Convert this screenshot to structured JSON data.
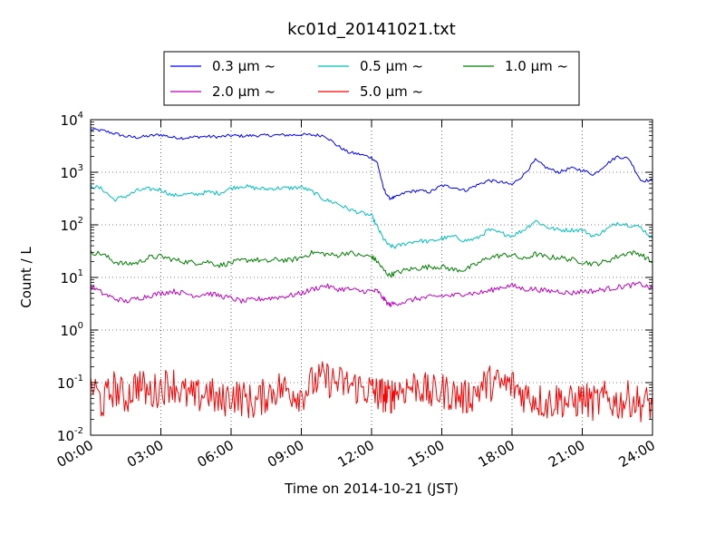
{
  "chart_data": {
    "type": "line",
    "title": "kc01d_20141021.txt",
    "xlabel": "Time on 2014-10-21 (JST)",
    "ylabel": "Count / L",
    "yscale": "log",
    "ylim": [
      0.01,
      10000
    ],
    "xlim": [
      0,
      24
    ],
    "x_ticks": [
      {
        "value": 0,
        "label": "00:00"
      },
      {
        "value": 3,
        "label": "03:00"
      },
      {
        "value": 6,
        "label": "06:00"
      },
      {
        "value": 9,
        "label": "09:00"
      },
      {
        "value": 12,
        "label": "12:00"
      },
      {
        "value": 15,
        "label": "15:00"
      },
      {
        "value": 18,
        "label": "18:00"
      },
      {
        "value": 21,
        "label": "21:00"
      },
      {
        "value": 24,
        "label": "24:00"
      }
    ],
    "y_ticks": [
      {
        "value": 0.01,
        "base": "10",
        "exp": "-2"
      },
      {
        "value": 0.1,
        "base": "10",
        "exp": "-1"
      },
      {
        "value": 1,
        "base": "10",
        "exp": "0"
      },
      {
        "value": 10,
        "base": "10",
        "exp": "1"
      },
      {
        "value": 100,
        "base": "10",
        "exp": "2"
      },
      {
        "value": 1000,
        "base": "10",
        "exp": "3"
      },
      {
        "value": 10000,
        "base": "10",
        "exp": "4"
      }
    ],
    "grid": true,
    "legend_position": "top-center",
    "legend_columns": 3,
    "series": [
      {
        "name": "0.3 μm ~",
        "color": "#0000ff",
        "x": [
          0,
          0.5,
          1,
          1.5,
          2,
          2.5,
          3,
          3.5,
          4,
          4.5,
          5,
          5.5,
          6,
          6.5,
          7,
          7.5,
          8,
          8.5,
          9,
          9.5,
          10,
          10.5,
          11,
          11.5,
          12,
          12.25,
          12.5,
          12.75,
          13,
          13.5,
          14,
          14.5,
          15,
          15.5,
          16,
          16.5,
          17,
          17.5,
          18,
          18.5,
          19,
          19.5,
          20,
          20.5,
          21,
          21.5,
          22,
          22.5,
          23,
          23.5,
          24
        ],
        "y": [
          6500,
          6200,
          5500,
          4800,
          4600,
          4900,
          5200,
          4600,
          4500,
          4700,
          4800,
          4700,
          5000,
          4900,
          5000,
          5000,
          5100,
          5100,
          5200,
          5100,
          5000,
          3300,
          2400,
          2200,
          1900,
          1500,
          500,
          320,
          330,
          420,
          450,
          420,
          560,
          520,
          450,
          570,
          700,
          650,
          580,
          900,
          1700,
          1200,
          1000,
          1200,
          1100,
          900,
          1400,
          2000,
          1800,
          700,
          700
        ]
      },
      {
        "name": "0.5 μm ~",
        "color": "#00bfbf",
        "x": [
          0,
          0.5,
          1,
          1.5,
          2,
          2.5,
          3,
          3.5,
          4,
          4.5,
          5,
          5.5,
          6,
          6.5,
          7,
          7.5,
          8,
          8.5,
          9,
          9.5,
          10,
          10.5,
          11,
          11.5,
          12,
          12.25,
          12.5,
          12.75,
          13,
          13.5,
          14,
          14.5,
          15,
          15.5,
          16,
          16.5,
          17,
          17.5,
          18,
          18.5,
          19,
          19.5,
          20,
          20.5,
          21,
          21.5,
          22,
          22.5,
          23,
          23.5,
          24
        ],
        "y": [
          550,
          480,
          300,
          350,
          450,
          480,
          470,
          360,
          380,
          380,
          420,
          400,
          500,
          550,
          500,
          480,
          500,
          500,
          520,
          420,
          300,
          260,
          200,
          170,
          150,
          90,
          55,
          40,
          38,
          45,
          50,
          48,
          55,
          60,
          50,
          55,
          80,
          70,
          62,
          80,
          120,
          90,
          80,
          80,
          80,
          60,
          80,
          110,
          100,
          90,
          55
        ]
      },
      {
        "name": "1.0 μm ~",
        "color": "#007f00",
        "x": [
          0,
          0.5,
          1,
          1.5,
          2,
          2.5,
          3,
          3.5,
          4,
          4.5,
          5,
          5.5,
          6,
          6.5,
          7,
          7.5,
          8,
          8.5,
          9,
          9.5,
          10,
          10.5,
          11,
          11.5,
          12,
          12.25,
          12.5,
          12.75,
          13,
          13.5,
          14,
          14.5,
          15,
          15.5,
          16,
          16.5,
          17,
          17.5,
          18,
          18.5,
          19,
          19.5,
          20,
          20.5,
          21,
          21.5,
          22,
          22.5,
          23,
          23.5,
          24
        ],
        "y": [
          30,
          28,
          20,
          18,
          19,
          24,
          25,
          22,
          20,
          19,
          20,
          17,
          19,
          21,
          22,
          20,
          22,
          21,
          24,
          30,
          28,
          26,
          30,
          26,
          25,
          20,
          14,
          11,
          12,
          14,
          15,
          16,
          16,
          14,
          14,
          18,
          24,
          26,
          27,
          22,
          28,
          24,
          24,
          22,
          20,
          18,
          20,
          25,
          30,
          28,
          19
        ]
      },
      {
        "name": "2.0 μm ~",
        "color": "#bf00bf",
        "x": [
          0,
          0.5,
          1,
          1.5,
          2,
          2.5,
          3,
          3.5,
          4,
          4.5,
          5,
          5.5,
          6,
          6.5,
          7,
          7.5,
          8,
          8.5,
          9,
          9.5,
          10,
          10.5,
          11,
          11.5,
          12,
          12.25,
          12.5,
          12.75,
          13,
          13.5,
          14,
          14.5,
          15,
          15.5,
          16,
          16.5,
          17,
          17.5,
          18,
          18.5,
          19,
          19.5,
          20,
          20.5,
          21,
          21.5,
          22,
          22.5,
          23,
          23.5,
          24
        ],
        "y": [
          7,
          5,
          4,
          3.5,
          4,
          4.5,
          5,
          5.5,
          5,
          4.5,
          5,
          4.5,
          4,
          3.5,
          3.8,
          4,
          4.2,
          4.5,
          5,
          6,
          7,
          6,
          6,
          5.5,
          5.5,
          5.5,
          4,
          3,
          3.2,
          3.5,
          4,
          4.2,
          4.5,
          4.5,
          5,
          5,
          5.5,
          6.5,
          7,
          6,
          6,
          5.5,
          5.5,
          5,
          5.5,
          5.5,
          6,
          6.5,
          7,
          7.5,
          6
        ]
      },
      {
        "name": "5.0 μm ~",
        "color": "#ff0000",
        "x": [
          0,
          0.5,
          1,
          1.5,
          2,
          2.5,
          3,
          3.5,
          4,
          4.5,
          5,
          5.5,
          6,
          6.5,
          7,
          7.5,
          8,
          8.5,
          9,
          9.5,
          10,
          10.5,
          11,
          11.5,
          12,
          12.25,
          12.5,
          12.75,
          13,
          13.5,
          14,
          14.5,
          15,
          15.5,
          16,
          16.5,
          17,
          17.5,
          18,
          18.5,
          19,
          19.5,
          20,
          20.5,
          21,
          21.5,
          22,
          22.5,
          23,
          23.5,
          24
        ],
        "y": [
          0.1,
          0.04,
          0.08,
          0.05,
          0.1,
          0.06,
          0.08,
          0.1,
          0.06,
          0.05,
          0.07,
          0.04,
          0.06,
          0.05,
          0.04,
          0.06,
          0.08,
          0.07,
          0.06,
          0.1,
          0.12,
          0.1,
          0.09,
          0.08,
          0.07,
          0.06,
          0.06,
          0.05,
          0.07,
          0.08,
          0.09,
          0.06,
          0.07,
          0.06,
          0.05,
          0.07,
          0.1,
          0.09,
          0.09,
          0.06,
          0.05,
          0.04,
          0.05,
          0.04,
          0.05,
          0.04,
          0.05,
          0.04,
          0.05,
          0.04,
          0.04
        ]
      }
    ]
  }
}
